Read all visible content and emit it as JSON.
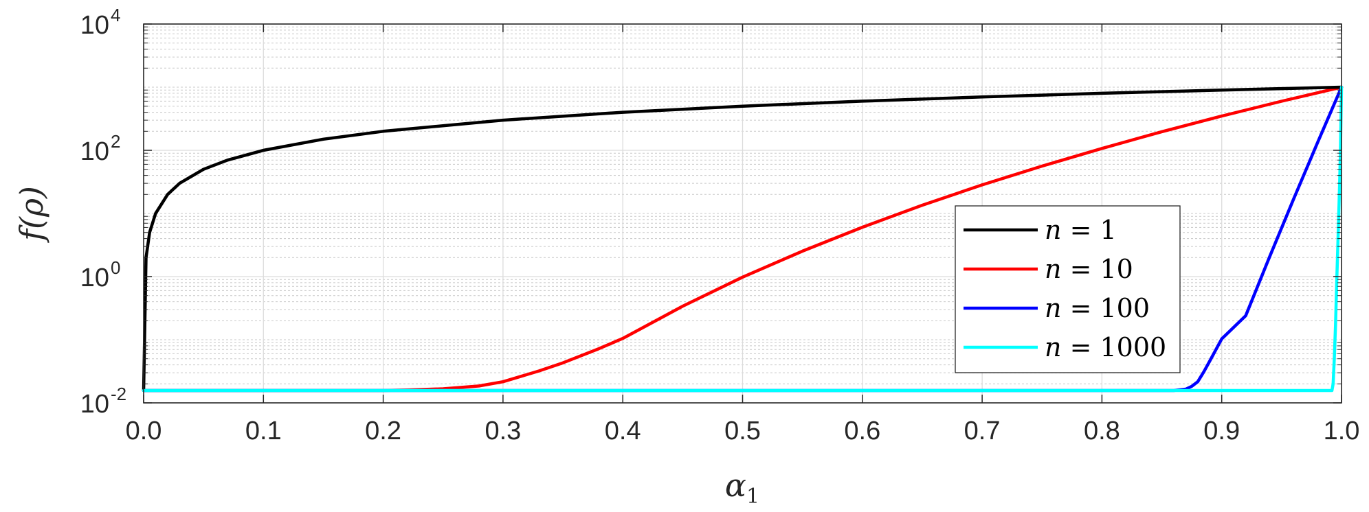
{
  "chart_data": {
    "type": "line",
    "title": "",
    "xlabel": {
      "base": "α",
      "subscript": "1"
    },
    "ylabel": "f(ρ)",
    "xlim": [
      0,
      1
    ],
    "ylim": [
      0.01,
      10000
    ],
    "y_scale": "log",
    "grid": true,
    "minor_grid": true,
    "legend_position": "inside-lower-right",
    "x_ticks": [
      "0.0",
      "0.1",
      "0.2",
      "0.3",
      "0.4",
      "0.5",
      "0.6",
      "0.7",
      "0.8",
      "0.9",
      "1.0"
    ],
    "y_ticks": [
      {
        "base": "10",
        "exp": "-2"
      },
      {
        "base": "10",
        "exp": "0"
      },
      {
        "base": "10",
        "exp": "2"
      },
      {
        "base": "10",
        "exp": "4"
      }
    ],
    "series": [
      {
        "name": "n = 1",
        "color": "#000000",
        "x": [
          0.0,
          0.002,
          0.005,
          0.01,
          0.02,
          0.03,
          0.05,
          0.07,
          0.1,
          0.15,
          0.2,
          0.3,
          0.4,
          0.5,
          0.6,
          0.7,
          0.8,
          0.9,
          1.0
        ],
        "y": [
          0.0157,
          2,
          5,
          10,
          20,
          30,
          50,
          70,
          100,
          150,
          200,
          300,
          400,
          500,
          600,
          700,
          800,
          900,
          1000
        ]
      },
      {
        "name": "n = 10",
        "color": "#ff0000",
        "x": [
          0.0,
          0.2,
          0.22,
          0.25,
          0.28,
          0.3,
          0.33,
          0.35,
          0.38,
          0.4,
          0.45,
          0.5,
          0.55,
          0.6,
          0.65,
          0.7,
          0.75,
          0.8,
          0.85,
          0.9,
          0.95,
          1.0
        ],
        "y": [
          0.0157,
          0.0157,
          0.016,
          0.0167,
          0.0185,
          0.0216,
          0.032,
          0.043,
          0.072,
          0.105,
          0.34,
          0.98,
          2.53,
          6.05,
          13.5,
          28.3,
          56.3,
          107,
          197,
          349,
          599,
          1000
        ]
      },
      {
        "name": "n = 100",
        "color": "#0000ff",
        "x": [
          0.0,
          0.86,
          0.87,
          0.875,
          0.88,
          0.885,
          0.89,
          0.9,
          0.92,
          0.94,
          0.96,
          0.98,
          1.0
        ],
        "y": [
          0.0157,
          0.0157,
          0.0165,
          0.0183,
          0.0216,
          0.031,
          0.046,
          0.103,
          0.24,
          2.06,
          16.9,
          132,
          1000
        ]
      },
      {
        "name": "n = 1000",
        "color": "#00ffff",
        "x": [
          0.0,
          0.992,
          0.993,
          0.994,
          0.995,
          0.996,
          0.997,
          0.998,
          0.999,
          1.0
        ],
        "y": [
          0.0157,
          0.0157,
          0.02,
          0.05,
          0.17,
          0.8,
          3.5,
          15,
          80,
          1000
        ]
      }
    ]
  }
}
